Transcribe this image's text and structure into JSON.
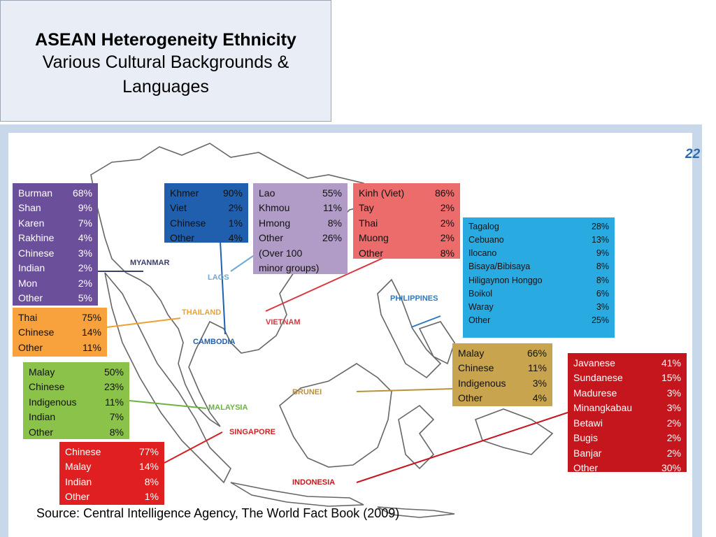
{
  "header": {
    "title": "ASEAN Heterogeneity Ethnicity",
    "subtitle": "Various Cultural Backgrounds & Languages"
  },
  "page_number": "22",
  "boxes": [
    {
      "country": "MYANMAR",
      "rows": [
        [
          "Burman",
          "68%"
        ],
        [
          "Shan",
          "9%"
        ],
        [
          "Karen",
          "7%"
        ],
        [
          "Rakhine",
          "4%"
        ],
        [
          "Chinese",
          "3%"
        ],
        [
          "Indian",
          "2%"
        ],
        [
          "Mon",
          "2%"
        ],
        [
          "Other",
          "5%"
        ]
      ]
    },
    {
      "country": "CAMBODIA",
      "rows": [
        [
          "Khmer",
          "90%"
        ],
        [
          "Viet",
          "2%"
        ],
        [
          "Chinese",
          "1%"
        ],
        [
          "Other",
          "4%"
        ]
      ]
    },
    {
      "country": "LAOS",
      "rows": [
        [
          "Lao",
          "55%"
        ],
        [
          "Khmou",
          "11%"
        ],
        [
          "Hmong",
          "8%"
        ],
        [
          "Other",
          "26%"
        ]
      ],
      "note": "(Over 100 minor groups)"
    },
    {
      "country": "VIETNAM",
      "rows": [
        [
          "Kinh (Viet)",
          "86%"
        ],
        [
          "Tay",
          "2%"
        ],
        [
          "Thai",
          "2%"
        ],
        [
          "Muong",
          "2%"
        ],
        [
          "Other",
          "8%"
        ]
      ]
    },
    {
      "country": "PHILIPPINES",
      "rows": [
        [
          "Tagalog",
          "28%"
        ],
        [
          "Cebuano",
          "13%"
        ],
        [
          "Ilocano",
          "9%"
        ],
        [
          "Bisaya/Bibisaya",
          "8%"
        ],
        [
          "Hiligaynon Honggo",
          "8%"
        ],
        [
          "Boikol",
          "6%"
        ],
        [
          "Waray",
          "3%"
        ],
        [
          "Other",
          "25%"
        ]
      ]
    },
    {
      "country": "THAILAND",
      "rows": [
        [
          "Thai",
          "75%"
        ],
        [
          "Chinese",
          "14%"
        ],
        [
          "Other",
          "11%"
        ]
      ]
    },
    {
      "country": "MALAYSIA",
      "rows": [
        [
          "Malay",
          "50%"
        ],
        [
          "Chinese",
          "23%"
        ],
        [
          "Indigenous",
          "11%"
        ],
        [
          "Indian",
          "7%"
        ],
        [
          "Other",
          "8%"
        ]
      ]
    },
    {
      "country": "BRUNEI",
      "rows": [
        [
          "Malay",
          "66%"
        ],
        [
          "Chinese",
          "11%"
        ],
        [
          "Indigenous",
          "3%"
        ],
        [
          "Other",
          "4%"
        ]
      ]
    },
    {
      "country": "INDONESIA",
      "rows": [
        [
          "Javanese",
          "41%"
        ],
        [
          "Sundanese",
          "15%"
        ],
        [
          "Madurese",
          "3%"
        ],
        [
          "Minangkabau",
          "3%"
        ],
        [
          "Betawi",
          "2%"
        ],
        [
          "Bugis",
          "2%"
        ],
        [
          "Banjar",
          "2%"
        ],
        [
          "Other",
          "30%"
        ]
      ]
    },
    {
      "country": "SINGAPORE",
      "rows": [
        [
          "Chinese",
          "77%"
        ],
        [
          "Malay",
          "14%"
        ],
        [
          "Indian",
          "8%"
        ],
        [
          "Other",
          "1%"
        ]
      ]
    }
  ],
  "source": "Source: Central Intelligence Agency, The World Fact Book (2009)"
}
